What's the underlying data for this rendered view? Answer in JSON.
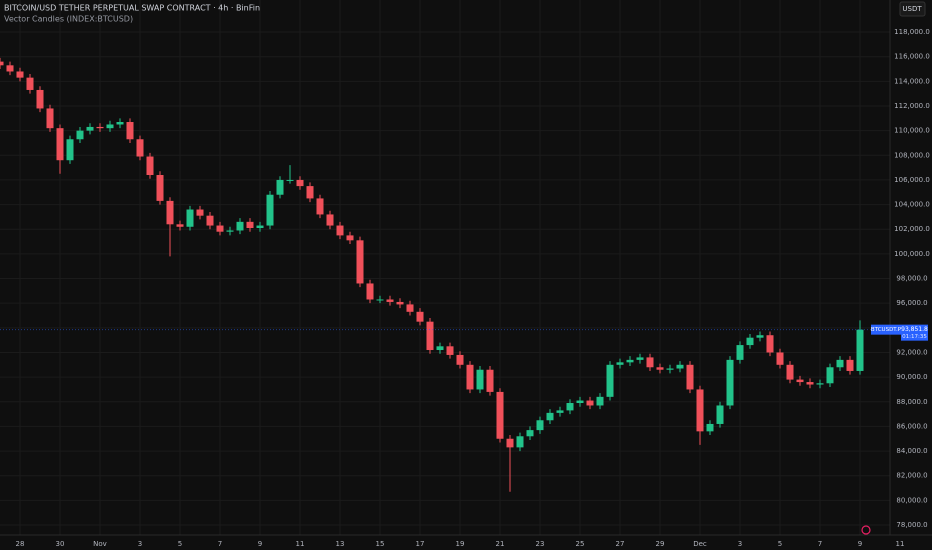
{
  "chart_data": {
    "type": "candlestick",
    "title": "BITCOIN/USD TETHER PERPETUAL SWAP CONTRACT · 4h · BinFin",
    "subtitle": "Vector Candles (INDEX:BTCUSD)",
    "currency": "USDT",
    "up_color": "#22c38a",
    "down_color": "#f0505a",
    "x": [
      -1,
      -0.5,
      0,
      0.5,
      1,
      1.5,
      2,
      2.5,
      3,
      3.5,
      4,
      4.5,
      5,
      5.5,
      6,
      6.5,
      7,
      7.5,
      8,
      8.5,
      9,
      9.5,
      10,
      10.5,
      11,
      11.5,
      12,
      12.5,
      13,
      13.5,
      14,
      14.5,
      15,
      15.5,
      16,
      16.5,
      17,
      17.5,
      18,
      18.5,
      19,
      19.5,
      20,
      20.5,
      21,
      21.5,
      22,
      22.5,
      23,
      23.5,
      24,
      24.5,
      25,
      25.5,
      26,
      26.5,
      27,
      27.5,
      28,
      28.5,
      29,
      29.5,
      30,
      30.5,
      31,
      31.5,
      32,
      32.5,
      33,
      33.5,
      34,
      34.5,
      35,
      35.5,
      36,
      36.5,
      37,
      37.5,
      38,
      38.5,
      39,
      39.5,
      40,
      40.5,
      41,
      41.5,
      42
    ],
    "open": [
      115600,
      115300,
      114800,
      114300,
      113300,
      111800,
      110200,
      107600,
      109300,
      110000,
      110300,
      110200,
      110500,
      110700,
      109300,
      107900,
      106400,
      104300,
      102400,
      102200,
      103600,
      103100,
      102300,
      101800,
      101900,
      102600,
      102100,
      102300,
      104800,
      106000,
      106000,
      105500,
      104500,
      103200,
      102300,
      101500,
      101100,
      97600,
      96300,
      96300,
      96100,
      95900,
      95300,
      94500,
      92200,
      92500,
      91800,
      91000,
      89000,
      90600,
      88800,
      85000,
      84300,
      85200,
      85700,
      86500,
      87100,
      87300,
      87900,
      88100,
      87700,
      88400,
      91000,
      91200,
      91400,
      91600,
      90800,
      90600,
      90700,
      91000,
      89000,
      85600,
      86200,
      87700,
      91400,
      92600,
      93200,
      93400,
      92000,
      91000,
      89800,
      89600,
      89400,
      89500,
      90800,
      91400,
      90500
    ],
    "high": [
      115900,
      115600,
      115100,
      114600,
      113600,
      112100,
      110500,
      109600,
      110300,
      110600,
      110600,
      110800,
      111000,
      111000,
      109600,
      108200,
      106700,
      104600,
      102700,
      103900,
      103900,
      103400,
      102600,
      102200,
      102900,
      102900,
      102600,
      105100,
      106300,
      107200,
      106300,
      105800,
      104800,
      103500,
      102600,
      101800,
      101400,
      97900,
      96600,
      96600,
      96400,
      96200,
      95600,
      94800,
      92800,
      92800,
      92100,
      91300,
      90900,
      90900,
      89100,
      85300,
      85500,
      86000,
      86800,
      87400,
      87600,
      88200,
      88400,
      88400,
      88700,
      91300,
      91500,
      91700,
      91900,
      91900,
      91100,
      91000,
      91300,
      91300,
      89300,
      86500,
      88000,
      91700,
      92900,
      93500,
      93700,
      93700,
      92300,
      91300,
      90100,
      89900,
      89800,
      91100,
      91700,
      91700,
      94600
    ],
    "low": [
      115000,
      114500,
      114000,
      113000,
      111500,
      109900,
      106500,
      107300,
      109000,
      109700,
      109900,
      109900,
      110200,
      109000,
      107600,
      106100,
      104000,
      99800,
      101900,
      101900,
      102800,
      102000,
      101500,
      101500,
      101600,
      101800,
      101800,
      102000,
      104500,
      105700,
      105200,
      104200,
      102900,
      102000,
      101200,
      100800,
      97300,
      96000,
      96000,
      95800,
      95600,
      95000,
      94200,
      91900,
      91900,
      91500,
      90700,
      88700,
      88700,
      88500,
      84700,
      80700,
      84000,
      84900,
      85400,
      86200,
      86800,
      87000,
      87600,
      87400,
      87400,
      88100,
      90700,
      90900,
      91100,
      90500,
      90300,
      90300,
      90400,
      88700,
      84500,
      85300,
      85900,
      87400,
      91100,
      92300,
      92900,
      91700,
      90700,
      89500,
      89300,
      89100,
      89100,
      89200,
      90500,
      90200,
      90200
    ],
    "close": [
      115300,
      114800,
      114300,
      113300,
      111800,
      110200,
      107600,
      109300,
      110000,
      110300,
      110200,
      110500,
      110700,
      109300,
      107900,
      106400,
      104300,
      102400,
      102200,
      103600,
      103100,
      102300,
      101800,
      101900,
      102600,
      102100,
      102300,
      104800,
      106000,
      106000,
      105500,
      104500,
      103200,
      102300,
      101500,
      101100,
      97600,
      96300,
      96300,
      96100,
      95900,
      95300,
      94500,
      92200,
      92500,
      91800,
      91000,
      89000,
      90600,
      88800,
      85000,
      84300,
      85200,
      85700,
      86500,
      87100,
      87300,
      87900,
      88100,
      87700,
      88400,
      91000,
      91200,
      91400,
      91600,
      90800,
      90600,
      90700,
      91000,
      89000,
      85600,
      86200,
      87700,
      91400,
      92600,
      93200,
      93400,
      92000,
      91000,
      89800,
      89600,
      89400,
      89500,
      90800,
      91400,
      90500,
      93851.8
    ],
    "last_label": {
      "symbol": "BTCUSDT.P",
      "price": "93,851.8",
      "countdown": "01:17:35"
    },
    "xlim": [
      -1,
      45.6
    ],
    "xticks": [
      {
        "value": 0,
        "label": "28"
      },
      {
        "value": 2,
        "label": "30"
      },
      {
        "value": 4,
        "label": "Nov"
      },
      {
        "value": 6,
        "label": "3"
      },
      {
        "value": 8,
        "label": "5"
      },
      {
        "value": 10,
        "label": "7"
      },
      {
        "value": 12,
        "label": "9"
      },
      {
        "value": 14,
        "label": "11"
      },
      {
        "value": 16,
        "label": "13"
      },
      {
        "value": 18,
        "label": "15"
      },
      {
        "value": 20,
        "label": "17"
      },
      {
        "value": 22,
        "label": "19"
      },
      {
        "value": 24,
        "label": "21"
      },
      {
        "value": 26,
        "label": "23"
      },
      {
        "value": 28,
        "label": "25"
      },
      {
        "value": 30,
        "label": "27"
      },
      {
        "value": 32,
        "label": "29"
      },
      {
        "value": 34,
        "label": "Dec"
      },
      {
        "value": 36,
        "label": "3"
      },
      {
        "value": 38,
        "label": "5"
      },
      {
        "value": 40,
        "label": "7"
      },
      {
        "value": 42,
        "label": "9"
      },
      {
        "value": 44,
        "label": "11"
      }
    ],
    "ylim": [
      77190,
      120600
    ],
    "yticks": [
      {
        "value": 78000,
        "label": "78,000.0"
      },
      {
        "value": 80000,
        "label": "80,000.0"
      },
      {
        "value": 82000,
        "label": "82,000.0"
      },
      {
        "value": 84000,
        "label": "84,000.0"
      },
      {
        "value": 86000,
        "label": "86,000.0"
      },
      {
        "value": 88000,
        "label": "88,000.0"
      },
      {
        "value": 90000,
        "label": "90,000.0"
      },
      {
        "value": 92000,
        "label": "92,000.0"
      },
      {
        "value": 94000,
        "label": "94,000.0"
      },
      {
        "value": 96000,
        "label": "96,000.0"
      },
      {
        "value": 98000,
        "label": "98,000.0"
      },
      {
        "value": 100000,
        "label": "100,000.0"
      },
      {
        "value": 102000,
        "label": "102,000.0"
      },
      {
        "value": 104000,
        "label": "104,000.0"
      },
      {
        "value": 106000,
        "label": "106,000.0"
      },
      {
        "value": 108000,
        "label": "108,000.0"
      },
      {
        "value": 110000,
        "label": "110,000.0"
      },
      {
        "value": 112000,
        "label": "112,000.0"
      },
      {
        "value": 114000,
        "label": "114,000.0"
      },
      {
        "value": 116000,
        "label": "116,000.0"
      },
      {
        "value": 118000,
        "label": "118,000.0"
      }
    ],
    "grid": true
  }
}
